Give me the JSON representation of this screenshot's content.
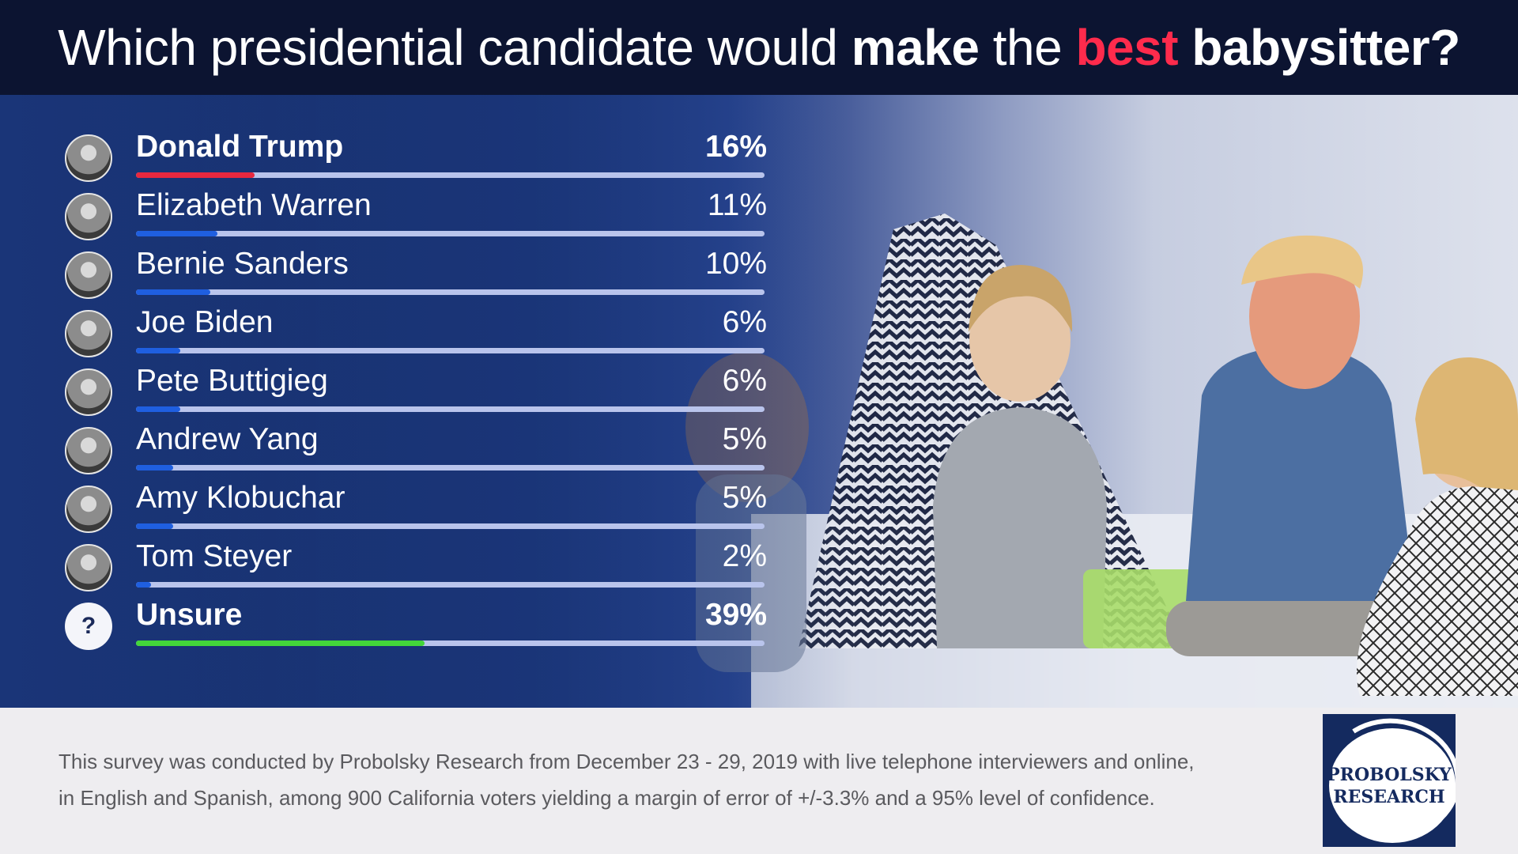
{
  "header": {
    "title_part1": "Which presidential candidate would ",
    "title_bold1": "make",
    "title_part2": " the ",
    "title_highlight": "best",
    "title_part3": " ",
    "title_bold2": "babysitter?"
  },
  "colors": {
    "header_bg": "#0c1431",
    "highlight": "#ff2b4c",
    "bar_trump": "#e8283f",
    "bar_default": "#1f5fe0",
    "bar_unsure": "#43d63a",
    "track": "#b9c4ec",
    "logo_bg": "#142a5f"
  },
  "chart_data": {
    "type": "bar",
    "orientation": "horizontal",
    "title": "Which presidential candidate would make the best babysitter?",
    "categories": [
      "Donald Trump",
      "Elizabeth Warren",
      "Bernie Sanders",
      "Joe Biden",
      "Pete Buttigieg",
      "Andrew Yang",
      "Amy Klobuchar",
      "Tom Steyer",
      "Unsure"
    ],
    "values": [
      16,
      11,
      10,
      6,
      6,
      5,
      5,
      2,
      39
    ],
    "labels": [
      "16%",
      "11%",
      "10%",
      "6%",
      "6%",
      "5%",
      "5%",
      "2%",
      "39%"
    ],
    "value_unit": "%",
    "xlim": [
      0,
      85
    ],
    "icons": [
      "photo-icon",
      "photo-icon",
      "photo-icon",
      "photo-icon",
      "photo-icon",
      "photo-icon",
      "photo-icon",
      "photo-icon",
      "question-mark-icon"
    ],
    "unsure_icon_glyph": "?",
    "emphasized": [
      "Donald Trump",
      "Unsure"
    ],
    "bar_colors": [
      "#e8283f",
      "#1f5fe0",
      "#1f5fe0",
      "#1f5fe0",
      "#1f5fe0",
      "#1f5fe0",
      "#1f5fe0",
      "#1f5fe0",
      "#43d63a"
    ]
  },
  "footer": {
    "line1": "This survey was conducted by Probolsky Research from December 23 - 29, 2019 with live telephone interviewers and online,",
    "line2": "in English and Spanish, among 900 California voters yielding a margin of error of +/-3.3% and a 95% level of confidence."
  },
  "logo": {
    "line1": "PROBOLSKY",
    "line2": "RESEARCH"
  }
}
